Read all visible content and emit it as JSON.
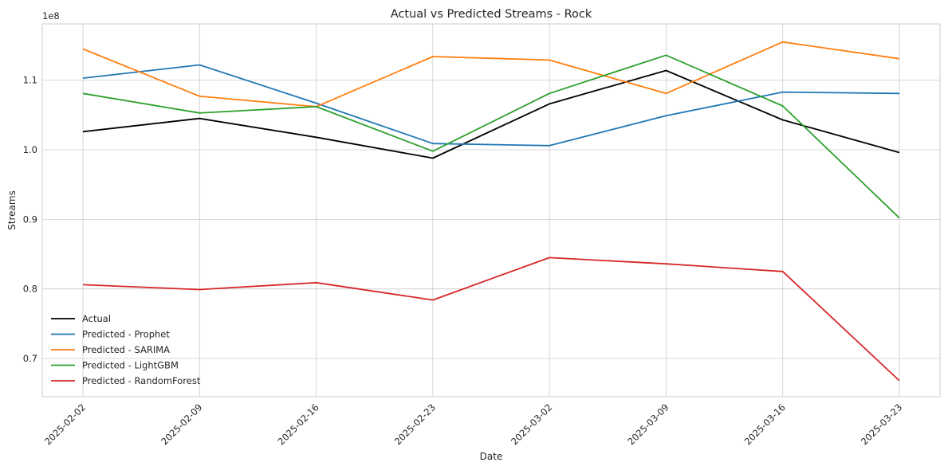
{
  "chart_data": {
    "type": "line",
    "title": "Actual vs Predicted Streams - Rock",
    "xlabel": "Date",
    "ylabel": "Streams",
    "y_scale_label": "1e8",
    "categories": [
      "2025-02-02",
      "2025-02-09",
      "2025-02-16",
      "2025-02-23",
      "2025-03-02",
      "2025-03-09",
      "2025-03-16",
      "2025-03-23"
    ],
    "y_ticks": [
      0.7,
      0.8,
      0.9,
      1.0,
      1.1
    ],
    "y_tick_labels": [
      "0.7",
      "0.8",
      "0.9",
      "1.0",
      "1.1"
    ],
    "ylim": [
      0.645,
      1.181
    ],
    "grid": true,
    "legend_position": "lower-left",
    "series": [
      {
        "name": "Actual",
        "color": "#000000",
        "values": [
          1.026,
          1.045,
          1.018,
          0.988,
          1.066,
          1.114,
          1.043,
          0.996
        ]
      },
      {
        "name": "Predicted - Prophet",
        "color": "#1f77b4",
        "values": [
          1.103,
          1.122,
          1.067,
          1.009,
          1.006,
          1.049,
          1.083,
          1.081
        ]
      },
      {
        "name": "Predicted - SARIMA",
        "color": "#ff7f0e",
        "values": [
          1.145,
          1.077,
          1.062,
          1.134,
          1.129,
          1.081,
          1.155,
          1.131
        ]
      },
      {
        "name": "Predicted - LightGBM",
        "color": "#2ca02c",
        "values": [
          1.081,
          1.053,
          1.062,
          0.998,
          1.081,
          1.136,
          1.063,
          0.902
        ]
      },
      {
        "name": "Predicted - RandomForest",
        "color": "#d62728",
        "values": [
          0.806,
          0.799,
          0.809,
          0.784,
          0.845,
          0.836,
          0.825,
          0.668
        ]
      }
    ]
  }
}
